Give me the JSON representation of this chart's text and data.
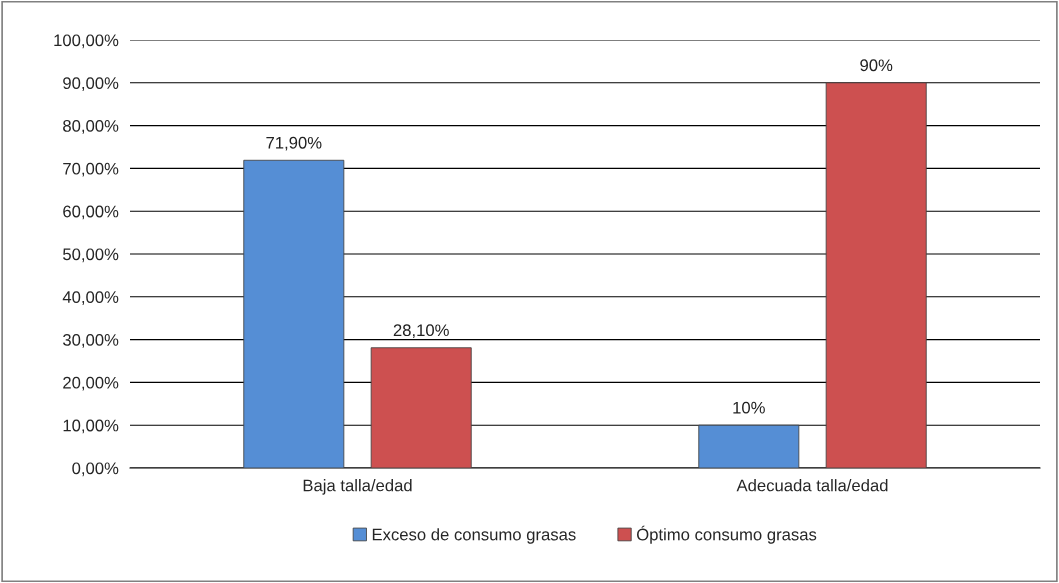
{
  "chart_data": {
    "type": "bar",
    "categories": [
      "Baja talla/edad",
      "Adecuada talla/edad"
    ],
    "series": [
      {
        "name": "Exceso de consumo grasas",
        "color": "#558ed5",
        "values": [
          71.9,
          10
        ],
        "value_labels": [
          "71,90%",
          "10%"
        ]
      },
      {
        "name": "Óptimo consumo grasas",
        "color": "#cd5050",
        "values": [
          28.1,
          90
        ],
        "value_labels": [
          "28,10%",
          "90%"
        ]
      }
    ],
    "ylim": [
      0,
      100
    ],
    "yticks": [
      {
        "value": 0,
        "label": "0,00%"
      },
      {
        "value": 10,
        "label": "10,00%"
      },
      {
        "value": 20,
        "label": "20,00%"
      },
      {
        "value": 30,
        "label": "30,00%"
      },
      {
        "value": 40,
        "label": "40,00%"
      },
      {
        "value": 50,
        "label": "50,00%"
      },
      {
        "value": 60,
        "label": "60,00%"
      },
      {
        "value": 70,
        "label": "70,00%"
      },
      {
        "value": 80,
        "label": "80,00%"
      },
      {
        "value": 90,
        "label": "90,00%"
      },
      {
        "value": 100,
        "label": "100,00%"
      }
    ],
    "grid": "y",
    "legend": "bottom"
  }
}
